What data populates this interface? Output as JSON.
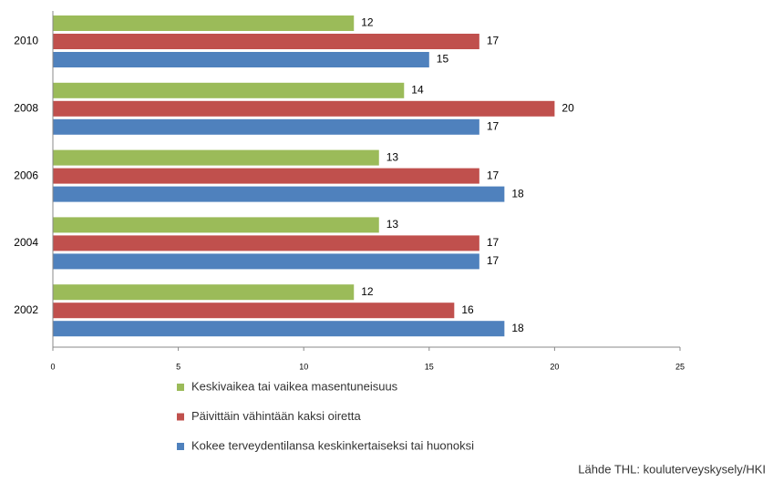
{
  "chart_data": {
    "type": "barh",
    "categories": [
      "2010",
      "2008",
      "2006",
      "2004",
      "2002"
    ],
    "series": [
      {
        "name": "Keskivaikea tai vaikea masentuneisuus",
        "color": "#9bbb59",
        "values": [
          12,
          14,
          13,
          13,
          12
        ]
      },
      {
        "name": "Päivittäin vähintään kaksi oiretta",
        "color": "#c0504d",
        "values": [
          17,
          20,
          17,
          17,
          16
        ]
      },
      {
        "name": "Kokee terveydentilansa keskinkertaiseksi tai huonoksi",
        "color": "#4f81bd",
        "values": [
          15,
          17,
          18,
          17,
          18
        ]
      }
    ],
    "xlim": [
      0,
      25
    ],
    "xticks": [
      0,
      5,
      10,
      15,
      20,
      25
    ],
    "source": "Lähde THL: kouluterveyskysely/HKI"
  }
}
